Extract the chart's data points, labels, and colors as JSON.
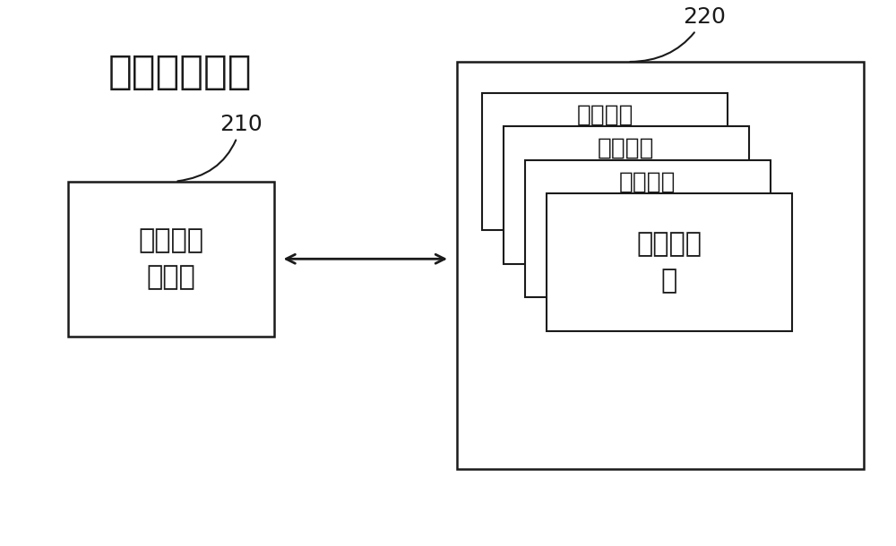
{
  "title": "算术逻辑单元",
  "title_fontsize": 32,
  "bg_color": "#ffffff",
  "box_color": "#ffffff",
  "border_color": "#1a1a1a",
  "text_color": "#1a1a1a",
  "label_210": "210",
  "label_220": "220",
  "left_box_text": "浮点数控\n制电路",
  "right_boxes_text": [
    "特定乘加",
    "特定乘加",
    "特定乘加",
    "特定乘加\n器"
  ],
  "arrow_color": "#1a1a1a",
  "font_family": "Noto Serif CJK SC",
  "font_family_fallback": "WenQuanYi Zen Hei"
}
